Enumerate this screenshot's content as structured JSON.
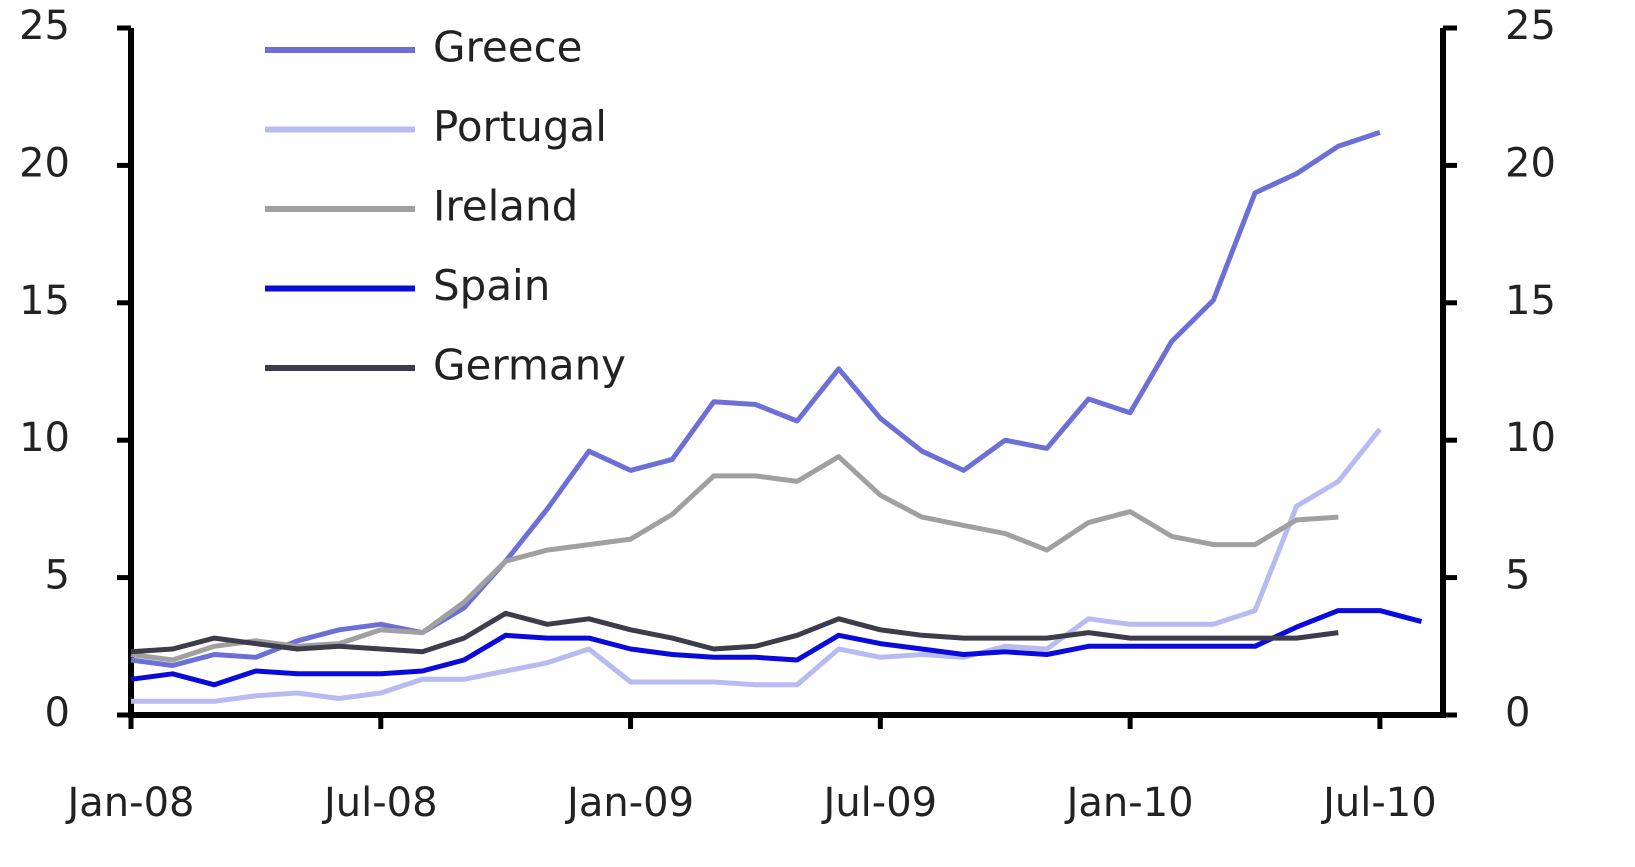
{
  "chart_data": {
    "type": "line",
    "categories": [
      "Jan-08",
      null,
      null,
      null,
      null,
      null,
      "Jul-08",
      null,
      null,
      null,
      null,
      null,
      "Jan-09",
      null,
      null,
      null,
      null,
      null,
      "Jul-09",
      null,
      null,
      null,
      null,
      null,
      "Jan-10",
      null,
      null,
      null,
      null,
      null,
      "Jul-10",
      null
    ],
    "series": [
      {
        "name": "Greece",
        "color": "#6b6fd6",
        "values": [
          2.0,
          1.8,
          2.2,
          2.1,
          2.7,
          3.1,
          3.3,
          3.0,
          3.9,
          5.6,
          7.5,
          9.6,
          8.9,
          9.3,
          11.4,
          11.3,
          10.7,
          12.6,
          10.8,
          9.6,
          8.9,
          10.0,
          9.7,
          11.5,
          11.0,
          13.6,
          15.1,
          19.0,
          19.7,
          20.7,
          21.2,
          null
        ]
      },
      {
        "name": "Portugal",
        "color": "#b8bbf2",
        "values": [
          0.5,
          0.5,
          0.5,
          0.7,
          0.8,
          0.6,
          0.8,
          1.3,
          1.3,
          1.6,
          1.9,
          2.4,
          1.2,
          1.2,
          1.2,
          1.1,
          1.1,
          2.4,
          2.1,
          2.2,
          2.1,
          2.5,
          2.4,
          3.5,
          3.3,
          3.3,
          3.3,
          3.8,
          7.6,
          8.5,
          10.4,
          null
        ]
      },
      {
        "name": "Ireland",
        "color": "#a0a0a0",
        "values": [
          2.2,
          2.0,
          2.5,
          2.7,
          2.5,
          2.6,
          3.1,
          3.0,
          4.1,
          5.6,
          6.0,
          6.2,
          6.4,
          7.3,
          8.7,
          8.7,
          8.5,
          9.4,
          8.0,
          7.2,
          6.9,
          6.6,
          6.0,
          7.0,
          7.4,
          6.5,
          6.2,
          6.2,
          7.1,
          7.2,
          null,
          null
        ]
      },
      {
        "name": "Spain",
        "color": "#0a0adc",
        "values": [
          1.3,
          1.5,
          1.1,
          1.6,
          1.5,
          1.5,
          1.5,
          1.6,
          2.0,
          2.9,
          2.8,
          2.8,
          2.4,
          2.2,
          2.1,
          2.1,
          2.0,
          2.9,
          2.6,
          2.4,
          2.2,
          2.3,
          2.2,
          2.5,
          2.5,
          2.5,
          2.5,
          2.5,
          3.2,
          3.8,
          3.8,
          3.4
        ]
      },
      {
        "name": "Germany",
        "color": "#3c3c4a",
        "values": [
          2.3,
          2.4,
          2.8,
          2.6,
          2.4,
          2.5,
          2.4,
          2.3,
          2.8,
          3.7,
          3.3,
          3.5,
          3.1,
          2.8,
          2.4,
          2.5,
          2.9,
          3.5,
          3.1,
          2.9,
          2.8,
          2.8,
          2.8,
          3.0,
          2.8,
          2.8,
          2.8,
          2.8,
          2.8,
          3.0,
          null,
          null
        ]
      }
    ],
    "ylim": [
      0,
      25
    ],
    "yticks": [
      0,
      5,
      10,
      15,
      20,
      25
    ],
    "y2lim": [
      0,
      25
    ],
    "y2ticks": [
      0,
      5,
      10,
      15,
      20,
      25
    ],
    "grid": false,
    "legend": "upper-left"
  }
}
